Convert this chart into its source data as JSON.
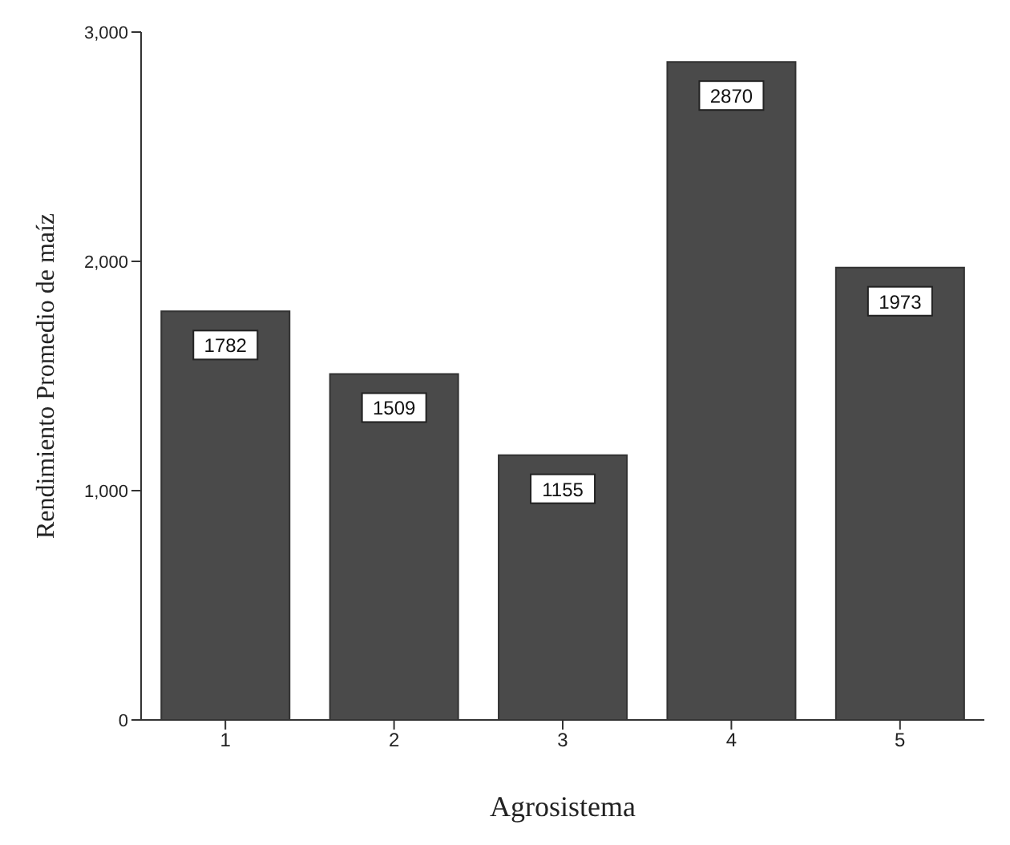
{
  "chart_data": {
    "type": "bar",
    "xlabel": "Agrosistema",
    "ylabel": "Rendimiento Promedio de maíz",
    "categories": [
      "1",
      "2",
      "3",
      "4",
      "5"
    ],
    "values": [
      1782,
      1509,
      1155,
      2870,
      1973
    ],
    "color": "#4a4a4a",
    "ylim": [
      0,
      3000
    ],
    "yticks": [
      {
        "value": 0,
        "label": "0"
      },
      {
        "value": 1000,
        "label": "1,000"
      },
      {
        "value": 2000,
        "label": "2,000"
      },
      {
        "value": 3000,
        "label": "3,000"
      }
    ],
    "data_labels": true,
    "grid": false
  }
}
